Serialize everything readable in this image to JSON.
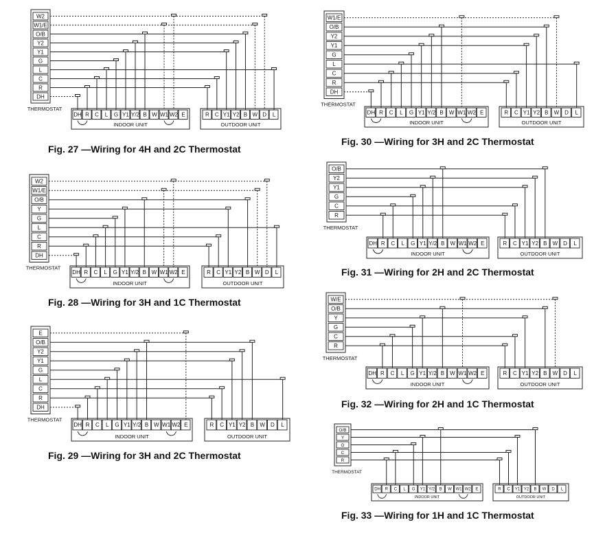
{
  "figures": [
    {
      "id": "fig27",
      "caption": "Fig. 27 —Wiring for 4H and 2C Thermostat",
      "thermostat_label": "THERMOSTAT",
      "thermostat_terminals": [
        "W2",
        "W1/E",
        "O/B",
        "Y2",
        "Y1",
        "G",
        "L",
        "C",
        "R",
        "DH"
      ],
      "indoor_label": "INDOOR UNIT",
      "indoor_terminals": [
        "DH",
        "R",
        "C",
        "L",
        "G",
        "Y1",
        "Y/2",
        "B",
        "W",
        "W1",
        "W2",
        "E"
      ],
      "outdoor_label": "OUTDOOR UNIT",
      "outdoor_terminals": [
        "R",
        "C",
        "Y1",
        "Y2",
        "B",
        "W",
        "D",
        "L"
      ]
    },
    {
      "id": "fig28",
      "caption": "Fig. 28 —Wiring for 3H and 1C Thermostat",
      "thermostat_label": "THERMOSTAT",
      "thermostat_terminals": [
        "W2",
        "W1/E",
        "O/B",
        "Y",
        "G",
        "L",
        "C",
        "R",
        "DH"
      ],
      "indoor_label": "INDOOR UNIT",
      "indoor_terminals": [
        "DH",
        "R",
        "C",
        "L",
        "G",
        "Y1",
        "Y/2",
        "B",
        "W",
        "W1",
        "W2",
        "E"
      ],
      "outdoor_label": "OUTDOOR UNIT",
      "outdoor_terminals": [
        "R",
        "C",
        "Y1",
        "Y2",
        "B",
        "W",
        "D",
        "L"
      ]
    },
    {
      "id": "fig29",
      "caption": "Fig. 29 —Wiring for 3H and 2C Thermostat",
      "thermostat_label": "THERMOSTAT",
      "thermostat_terminals": [
        "E",
        "O/B",
        "Y2",
        "Y1",
        "G",
        "L",
        "C",
        "R",
        "DH"
      ],
      "indoor_label": "INDOOR UNIT",
      "indoor_terminals": [
        "DH",
        "R",
        "C",
        "L",
        "G",
        "Y1",
        "Y/2",
        "B",
        "W",
        "W1",
        "W2",
        "E"
      ],
      "outdoor_label": "OUTDOOR UNIT",
      "outdoor_terminals": [
        "R",
        "C",
        "Y1",
        "Y2",
        "B",
        "W",
        "D",
        "L"
      ]
    },
    {
      "id": "fig30",
      "caption": "Fig. 30 —Wiring for 3H and 2C Thermostat",
      "thermostat_label": "THERMOSTAT",
      "thermostat_terminals": [
        "W1/E",
        "O/B",
        "Y2",
        "Y1",
        "G",
        "L",
        "C",
        "R",
        "DH"
      ],
      "indoor_label": "INDOOR UNIT",
      "indoor_terminals": [
        "DH",
        "R",
        "C",
        "L",
        "G",
        "Y1",
        "Y/2",
        "B",
        "W",
        "W1",
        "W2",
        "E"
      ],
      "outdoor_label": "OUTDOOR UNIT",
      "outdoor_terminals": [
        "R",
        "C",
        "Y1",
        "Y2",
        "B",
        "W",
        "D",
        "L"
      ]
    },
    {
      "id": "fig31",
      "caption": "Fig. 31 —Wiring for 2H and 2C Thermostat",
      "thermostat_label": "THERMOSTAT",
      "thermostat_terminals": [
        "O/B",
        "Y2",
        "Y1",
        "G",
        "C",
        "R"
      ],
      "indoor_label": "INDOOR UNIT",
      "indoor_terminals": [
        "DH",
        "R",
        "C",
        "L",
        "G",
        "Y1",
        "Y/2",
        "B",
        "W",
        "W1",
        "W2",
        "E"
      ],
      "outdoor_label": "OUTDOOR UNIT",
      "outdoor_terminals": [
        "R",
        "C",
        "Y1",
        "Y2",
        "B",
        "W",
        "D",
        "L"
      ]
    },
    {
      "id": "fig32",
      "caption": "Fig. 32 —Wiring for 2H and 1C Thermostat",
      "thermostat_label": "THERMOSTAT",
      "thermostat_terminals": [
        "W/E",
        "O/B",
        "Y",
        "G",
        "C",
        "R"
      ],
      "indoor_label": "INDOOR UNIT",
      "indoor_terminals": [
        "DH",
        "R",
        "C",
        "L",
        "G",
        "Y1",
        "Y/2",
        "B",
        "W",
        "W1",
        "W2",
        "E"
      ],
      "outdoor_label": "OUTDOOR UNIT",
      "outdoor_terminals": [
        "R",
        "C",
        "Y1",
        "Y2",
        "B",
        "W",
        "D",
        "L"
      ]
    },
    {
      "id": "fig33",
      "caption": "Fig. 33 —Wiring for 1H and 1C Thermostat",
      "thermostat_label": "THERMOSTAT",
      "thermostat_terminals": [
        "O/B",
        "Y",
        "G",
        "C",
        "R"
      ],
      "indoor_label": "INDOOR UNIT",
      "indoor_terminals": [
        "DH",
        "R",
        "C",
        "L",
        "G",
        "Y1",
        "Y/2",
        "B",
        "W",
        "W1",
        "W2",
        "E"
      ],
      "outdoor_label": "OUTDOOR UNIT",
      "outdoor_terminals": [
        "R",
        "C",
        "Y1",
        "Y2",
        "B",
        "W",
        "D",
        "L"
      ]
    }
  ]
}
